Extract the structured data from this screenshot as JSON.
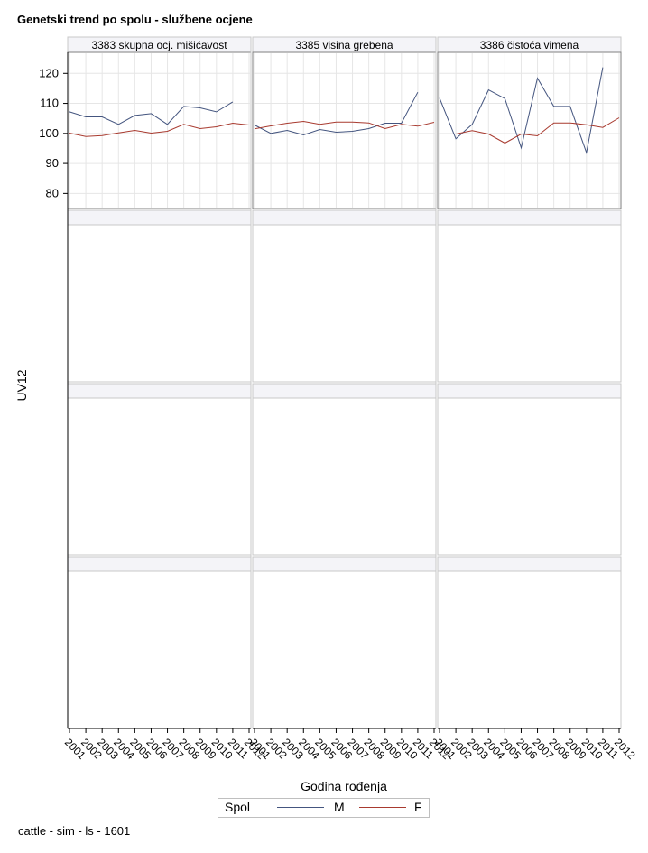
{
  "title": "Genetski trend po spolu - službene ocjene",
  "footer": "cattle - sim - ls - 1601",
  "colors": {
    "M": "#44557f",
    "F": "#a83a2f",
    "panel_border": "#7f7f7f",
    "grid": "#e6e6e6",
    "header_bg": "#f4f4f8"
  },
  "chart_data": {
    "type": "line",
    "layout": "panel-grid 3 columns x 4 rows (rows 2-4 empty)",
    "xlabel": "Godina rođenja",
    "ylabel": "UV12",
    "x": [
      2001,
      2002,
      2003,
      2004,
      2005,
      2006,
      2007,
      2008,
      2009,
      2010,
      2011,
      2012
    ],
    "ylim": [
      75,
      127
    ],
    "yticks": [
      80,
      90,
      100,
      110,
      120
    ],
    "grid": true,
    "legend": {
      "title": "Spol",
      "position": "bottom",
      "entries": [
        "M",
        "F"
      ]
    },
    "panels": [
      {
        "label": "3383 skupna ocj. mišićavost",
        "series": [
          {
            "name": "M",
            "values": [
              107.2,
              105.5,
              105.5,
              103.0,
              106.0,
              106.6,
              103.0,
              109.0,
              108.5,
              107.2,
              110.5,
              null
            ]
          },
          {
            "name": "F",
            "values": [
              100.1,
              99.0,
              99.3,
              100.2,
              101.0,
              100.1,
              100.7,
              103.0,
              101.6,
              102.2,
              103.4,
              102.8
            ]
          }
        ]
      },
      {
        "label": "3385 visina grebena",
        "series": [
          {
            "name": "M",
            "values": [
              102.8,
              100.0,
              101.0,
              99.5,
              101.3,
              100.4,
              100.7,
              101.6,
              103.4,
              103.4,
              113.7,
              null
            ]
          },
          {
            "name": "F",
            "values": [
              101.5,
              102.5,
              103.4,
              104.0,
              103.0,
              103.8,
              103.8,
              103.5,
              101.6,
              103.0,
              102.4,
              103.7
            ]
          }
        ]
      },
      {
        "label": "3386 čistoća vimena",
        "series": [
          {
            "name": "M",
            "values": [
              111.8,
              98.2,
              103.0,
              114.5,
              111.6,
              95.2,
              118.4,
              109.0,
              109.0,
              93.6,
              122.0,
              null
            ]
          },
          {
            "name": "F",
            "values": [
              99.8,
              99.8,
              100.9,
              99.8,
              96.8,
              99.8,
              99.2,
              103.5,
              103.5,
              102.9,
              102.0,
              105.2
            ]
          }
        ]
      }
    ]
  }
}
